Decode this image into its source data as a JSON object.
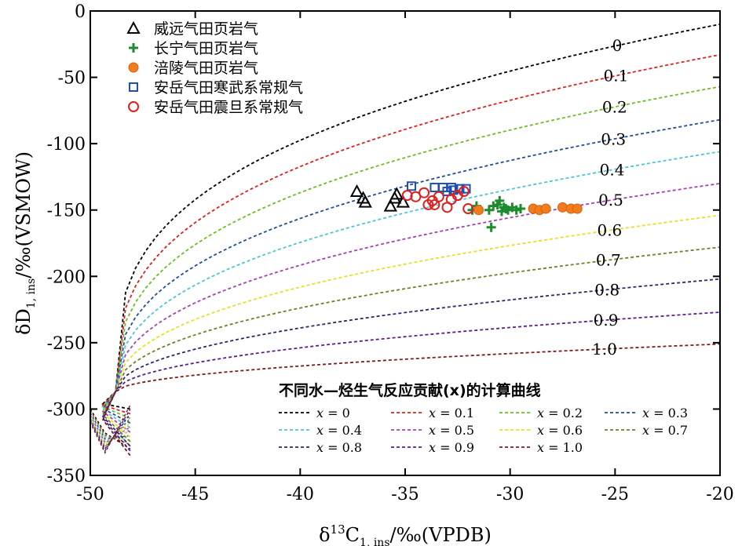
{
  "chart_data": {
    "type": "scatter",
    "xlabel": "δ13C1,ins/‰(VPDB)",
    "xlabel_parts": {
      "pre": "δ",
      "sup": "13",
      "main": "C",
      "sub": "1, ins",
      "post": "/‰(VPDB)"
    },
    "ylabel": "δD1,ins/‰(VSMOW)",
    "ylabel_parts": {
      "pre": "δD",
      "sub": "1, ins",
      "post": "/‰(VSMOW)"
    },
    "xlim": [
      -50,
      -20
    ],
    "ylim": [
      -350,
      0
    ],
    "x_ticks": [
      -50,
      -45,
      -40,
      -35,
      -30,
      -25,
      -20
    ],
    "x_tick_labels": [
      "-50",
      "-45",
      "-40",
      "-35",
      "-30",
      "-25",
      "-20"
    ],
    "y_ticks": [
      0,
      -50,
      -100,
      -150,
      -200,
      -250,
      -300,
      -350
    ],
    "y_tick_labels": [
      "0",
      "-50",
      "-100",
      "-150",
      "-200",
      "-250",
      "-300",
      "-350"
    ],
    "grid": false,
    "legend_position": "top-left",
    "series": [
      {
        "name": "威远气田页岩气",
        "marker": "triangle",
        "color": "#000000",
        "points": [
          [
            -37.3,
            -136
          ],
          [
            -37.0,
            -141
          ],
          [
            -36.9,
            -144
          ],
          [
            -35.7,
            -147
          ],
          [
            -35.4,
            -138
          ],
          [
            -35.1,
            -144
          ],
          [
            -35.5,
            -141
          ]
        ]
      },
      {
        "name": "长宁气田页岩气",
        "marker": "plus",
        "color": "#1e8c2e",
        "points": [
          [
            -31.8,
            -150
          ],
          [
            -31.6,
            -147
          ],
          [
            -31.0,
            -150
          ],
          [
            -30.8,
            -147
          ],
          [
            -30.6,
            -146
          ],
          [
            -30.5,
            -143
          ],
          [
            -30.3,
            -148
          ],
          [
            -30.1,
            -150
          ],
          [
            -29.9,
            -148
          ],
          [
            -29.7,
            -150
          ],
          [
            -29.5,
            -149
          ],
          [
            -30.9,
            -163
          ],
          [
            -30.4,
            -151
          ],
          [
            -30.2,
            -149
          ]
        ]
      },
      {
        "name": "涪陵气田页岩气",
        "marker": "circle-filled",
        "color": "#f07c1e",
        "points": [
          [
            -31.5,
            -150
          ],
          [
            -28.9,
            -149
          ],
          [
            -28.6,
            -150
          ],
          [
            -28.3,
            -149
          ],
          [
            -27.5,
            -148
          ],
          [
            -27.1,
            -149
          ],
          [
            -26.8,
            -149
          ]
        ]
      },
      {
        "name": "安岳气田寒武系常规气",
        "marker": "square",
        "color": "#1e50b4",
        "points": [
          [
            -34.7,
            -132
          ],
          [
            -33.6,
            -133
          ],
          [
            -33.2,
            -133
          ],
          [
            -32.8,
            -133
          ],
          [
            -32.7,
            -135
          ],
          [
            -32.4,
            -134
          ],
          [
            -32.1,
            -134
          ],
          [
            -33.0,
            -136
          ]
        ]
      },
      {
        "name": "安岳气田震旦系常规气",
        "marker": "circle-open",
        "color": "#e0201e",
        "points": [
          [
            -34.9,
            -139
          ],
          [
            -34.5,
            -140
          ],
          [
            -34.1,
            -137
          ],
          [
            -33.9,
            -146
          ],
          [
            -33.6,
            -146
          ],
          [
            -33.4,
            -140
          ],
          [
            -33.0,
            -148
          ],
          [
            -32.8,
            -142
          ],
          [
            -32.5,
            -139
          ],
          [
            -32.2,
            -136
          ],
          [
            -32.0,
            -149
          ],
          [
            -33.7,
            -143
          ]
        ]
      }
    ],
    "curves_legend_title": "不同水—烃生气反应贡献(x)的计算曲线",
    "curves": [
      {
        "x_value": 0.0,
        "legend": "x = 0",
        "label": "0",
        "color": "#000000",
        "end_y": -10
      },
      {
        "x_value": 0.1,
        "legend": "x = 0.1",
        "label": "0.1",
        "color": "#e0201e",
        "end_y": -33
      },
      {
        "x_value": 0.2,
        "legend": "x = 0.2",
        "label": "0.2",
        "color": "#6cbf22",
        "end_y": -57
      },
      {
        "x_value": 0.3,
        "legend": "x = 0.3",
        "label": "0.3",
        "color": "#1e4f96",
        "end_y": -82
      },
      {
        "x_value": 0.4,
        "legend": "x = 0.4",
        "label": "0.4",
        "color": "#4cc4dc",
        "end_y": -106
      },
      {
        "x_value": 0.5,
        "legend": "x = 0.5",
        "label": "0.5",
        "color": "#a640b4",
        "end_y": -130
      },
      {
        "x_value": 0.6,
        "legend": "x = 0.6",
        "label": "0.6",
        "color": "#e8e020",
        "end_y": -154
      },
      {
        "x_value": 0.7,
        "legend": "x = 0.7",
        "label": "0.7",
        "color": "#7a7a2a",
        "end_y": -178
      },
      {
        "x_value": 0.8,
        "legend": "x = 0.8",
        "label": "0.8",
        "color": "#2a2a6a",
        "end_y": -202
      },
      {
        "x_value": 0.9,
        "legend": "x = 0.9",
        "label": "0.9",
        "color": "#5a1e8c",
        "end_y": -227
      },
      {
        "x_value": 1.0,
        "legend": "x = 1.0",
        "label": "1.0",
        "color": "#7a1e1e",
        "end_y": -251
      }
    ]
  }
}
